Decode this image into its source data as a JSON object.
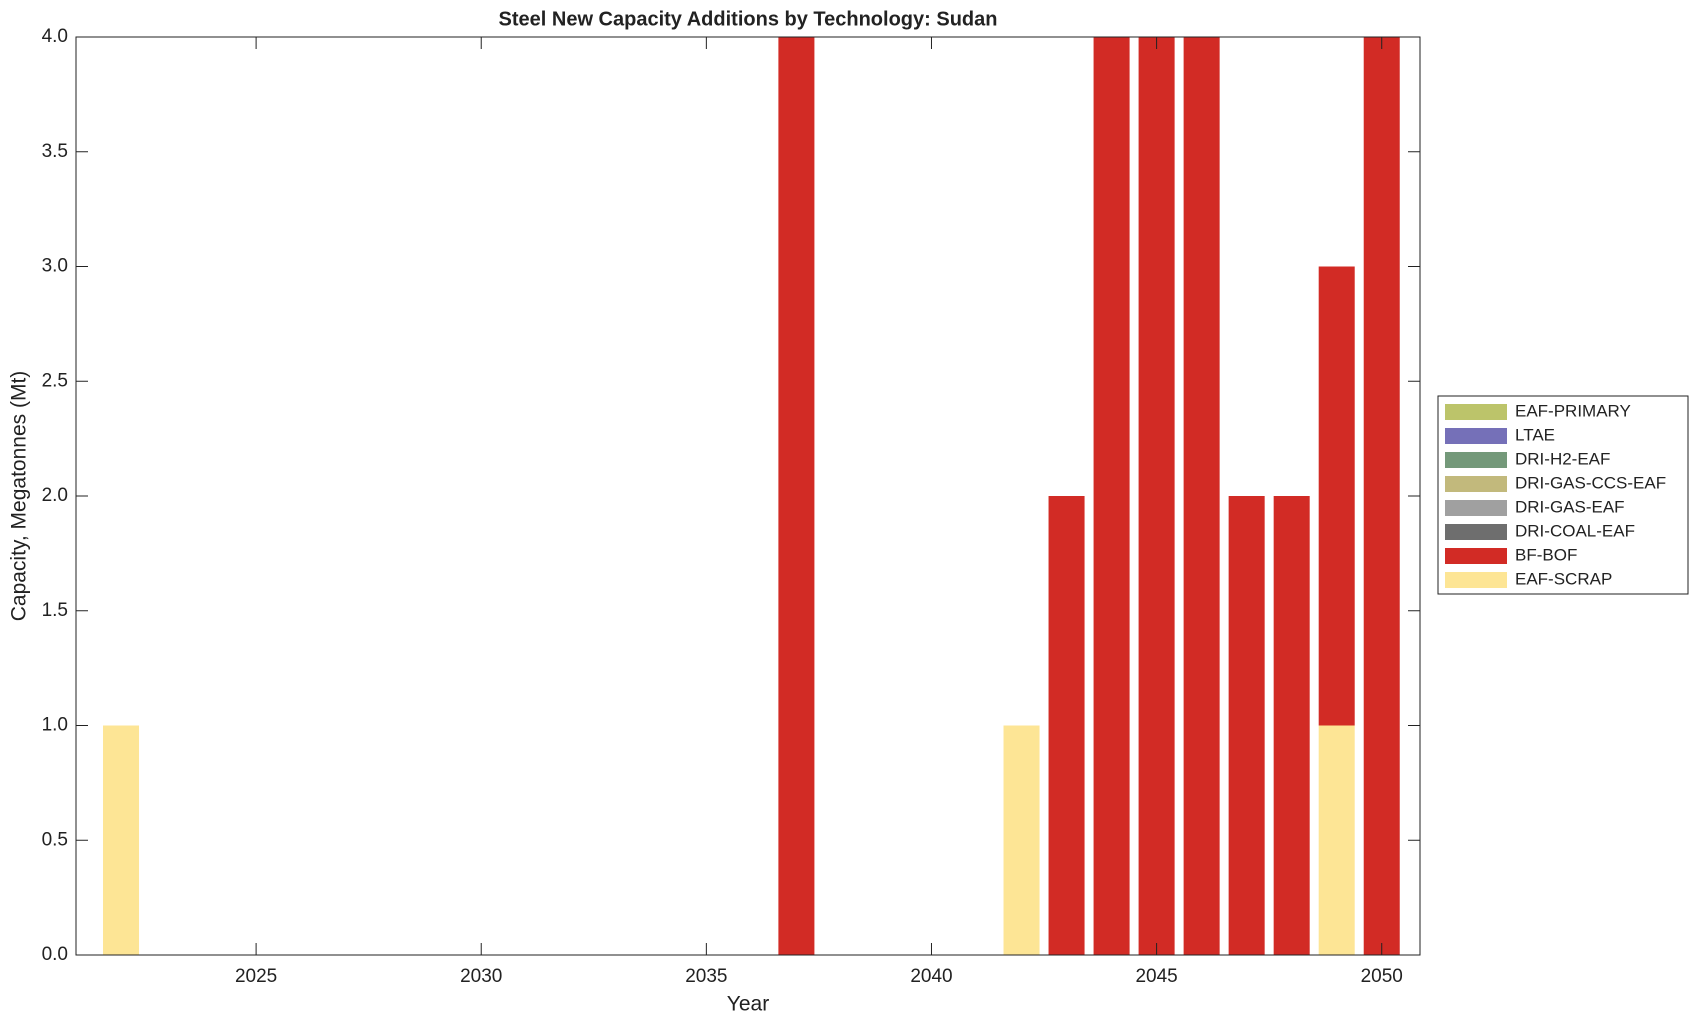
{
  "chart_data": {
    "type": "bar",
    "stacked": true,
    "title": "Steel New Capacity Additions by Technology: Sudan",
    "x_label": "Year",
    "y_label": "Capacity, Megatonnes (Mt)",
    "x": [
      2022,
      2023,
      2024,
      2025,
      2026,
      2027,
      2028,
      2029,
      2030,
      2031,
      2032,
      2033,
      2034,
      2035,
      2036,
      2037,
      2038,
      2039,
      2040,
      2041,
      2042,
      2043,
      2044,
      2045,
      2046,
      2047,
      2048,
      2049,
      2050
    ],
    "series": [
      {
        "name": "EAF-PRIMARY",
        "color": "#bcc46a",
        "values": [
          0,
          0,
          0,
          0,
          0,
          0,
          0,
          0,
          0,
          0,
          0,
          0,
          0,
          0,
          0,
          0,
          0,
          0,
          0,
          0,
          0,
          0,
          0,
          0,
          0,
          0,
          0,
          0,
          0
        ]
      },
      {
        "name": "LTAE",
        "color": "#7570b8",
        "values": [
          0,
          0,
          0,
          0,
          0,
          0,
          0,
          0,
          0,
          0,
          0,
          0,
          0,
          0,
          0,
          0,
          0,
          0,
          0,
          0,
          0,
          0,
          0,
          0,
          0,
          0,
          0,
          0,
          0
        ]
      },
      {
        "name": "DRI-H2-EAF",
        "color": "#74997a",
        "values": [
          0,
          0,
          0,
          0,
          0,
          0,
          0,
          0,
          0,
          0,
          0,
          0,
          0,
          0,
          0,
          0,
          0,
          0,
          0,
          0,
          0,
          0,
          0,
          0,
          0,
          0,
          0,
          0,
          0
        ]
      },
      {
        "name": "DRI-GAS-CCS-EAF",
        "color": "#c2b97c",
        "values": [
          0,
          0,
          0,
          0,
          0,
          0,
          0,
          0,
          0,
          0,
          0,
          0,
          0,
          0,
          0,
          0,
          0,
          0,
          0,
          0,
          0,
          0,
          0,
          0,
          0,
          0,
          0,
          0,
          0
        ]
      },
      {
        "name": "DRI-GAS-EAF",
        "color": "#a0a0a0",
        "values": [
          0,
          0,
          0,
          0,
          0,
          0,
          0,
          0,
          0,
          0,
          0,
          0,
          0,
          0,
          0,
          0,
          0,
          0,
          0,
          0,
          0,
          0,
          0,
          0,
          0,
          0,
          0,
          0,
          0
        ]
      },
      {
        "name": "DRI-COAL-EAF",
        "color": "#6e6e6e",
        "values": [
          0,
          0,
          0,
          0,
          0,
          0,
          0,
          0,
          0,
          0,
          0,
          0,
          0,
          0,
          0,
          0,
          0,
          0,
          0,
          0,
          0,
          0,
          0,
          0,
          0,
          0,
          0,
          0,
          0
        ]
      },
      {
        "name": "BF-BOF",
        "color": "#d22b25",
        "values": [
          0,
          0,
          0,
          0,
          0,
          0,
          0,
          0,
          0,
          0,
          0,
          0,
          0,
          0,
          0,
          4,
          0,
          0,
          0,
          0,
          0,
          2,
          4,
          4,
          4,
          2,
          2,
          2,
          4
        ]
      },
      {
        "name": "EAF-SCRAP",
        "color": "#fde595",
        "values": [
          1,
          0,
          0,
          0,
          0,
          0,
          0,
          0,
          0,
          0,
          0,
          0,
          0,
          0,
          0,
          0,
          0,
          0,
          0,
          0,
          1,
          0,
          0,
          0,
          0,
          0,
          0,
          1,
          0
        ]
      }
    ],
    "xlim": [
      2021,
      2050.85
    ],
    "xticks": [
      2025,
      2030,
      2035,
      2040,
      2045,
      2050
    ],
    "ylim": [
      0,
      4
    ],
    "yticks": [
      {
        "value": 0,
        "label": "0.0"
      },
      0.5,
      {
        "value": 1,
        "label": "1.0"
      },
      1.5,
      {
        "value": 2,
        "label": "2.0"
      },
      2.5,
      {
        "value": 3,
        "label": "3.0"
      },
      3.5,
      {
        "value": 4,
        "label": "4.0"
      }
    ],
    "legend": "outside-right"
  }
}
